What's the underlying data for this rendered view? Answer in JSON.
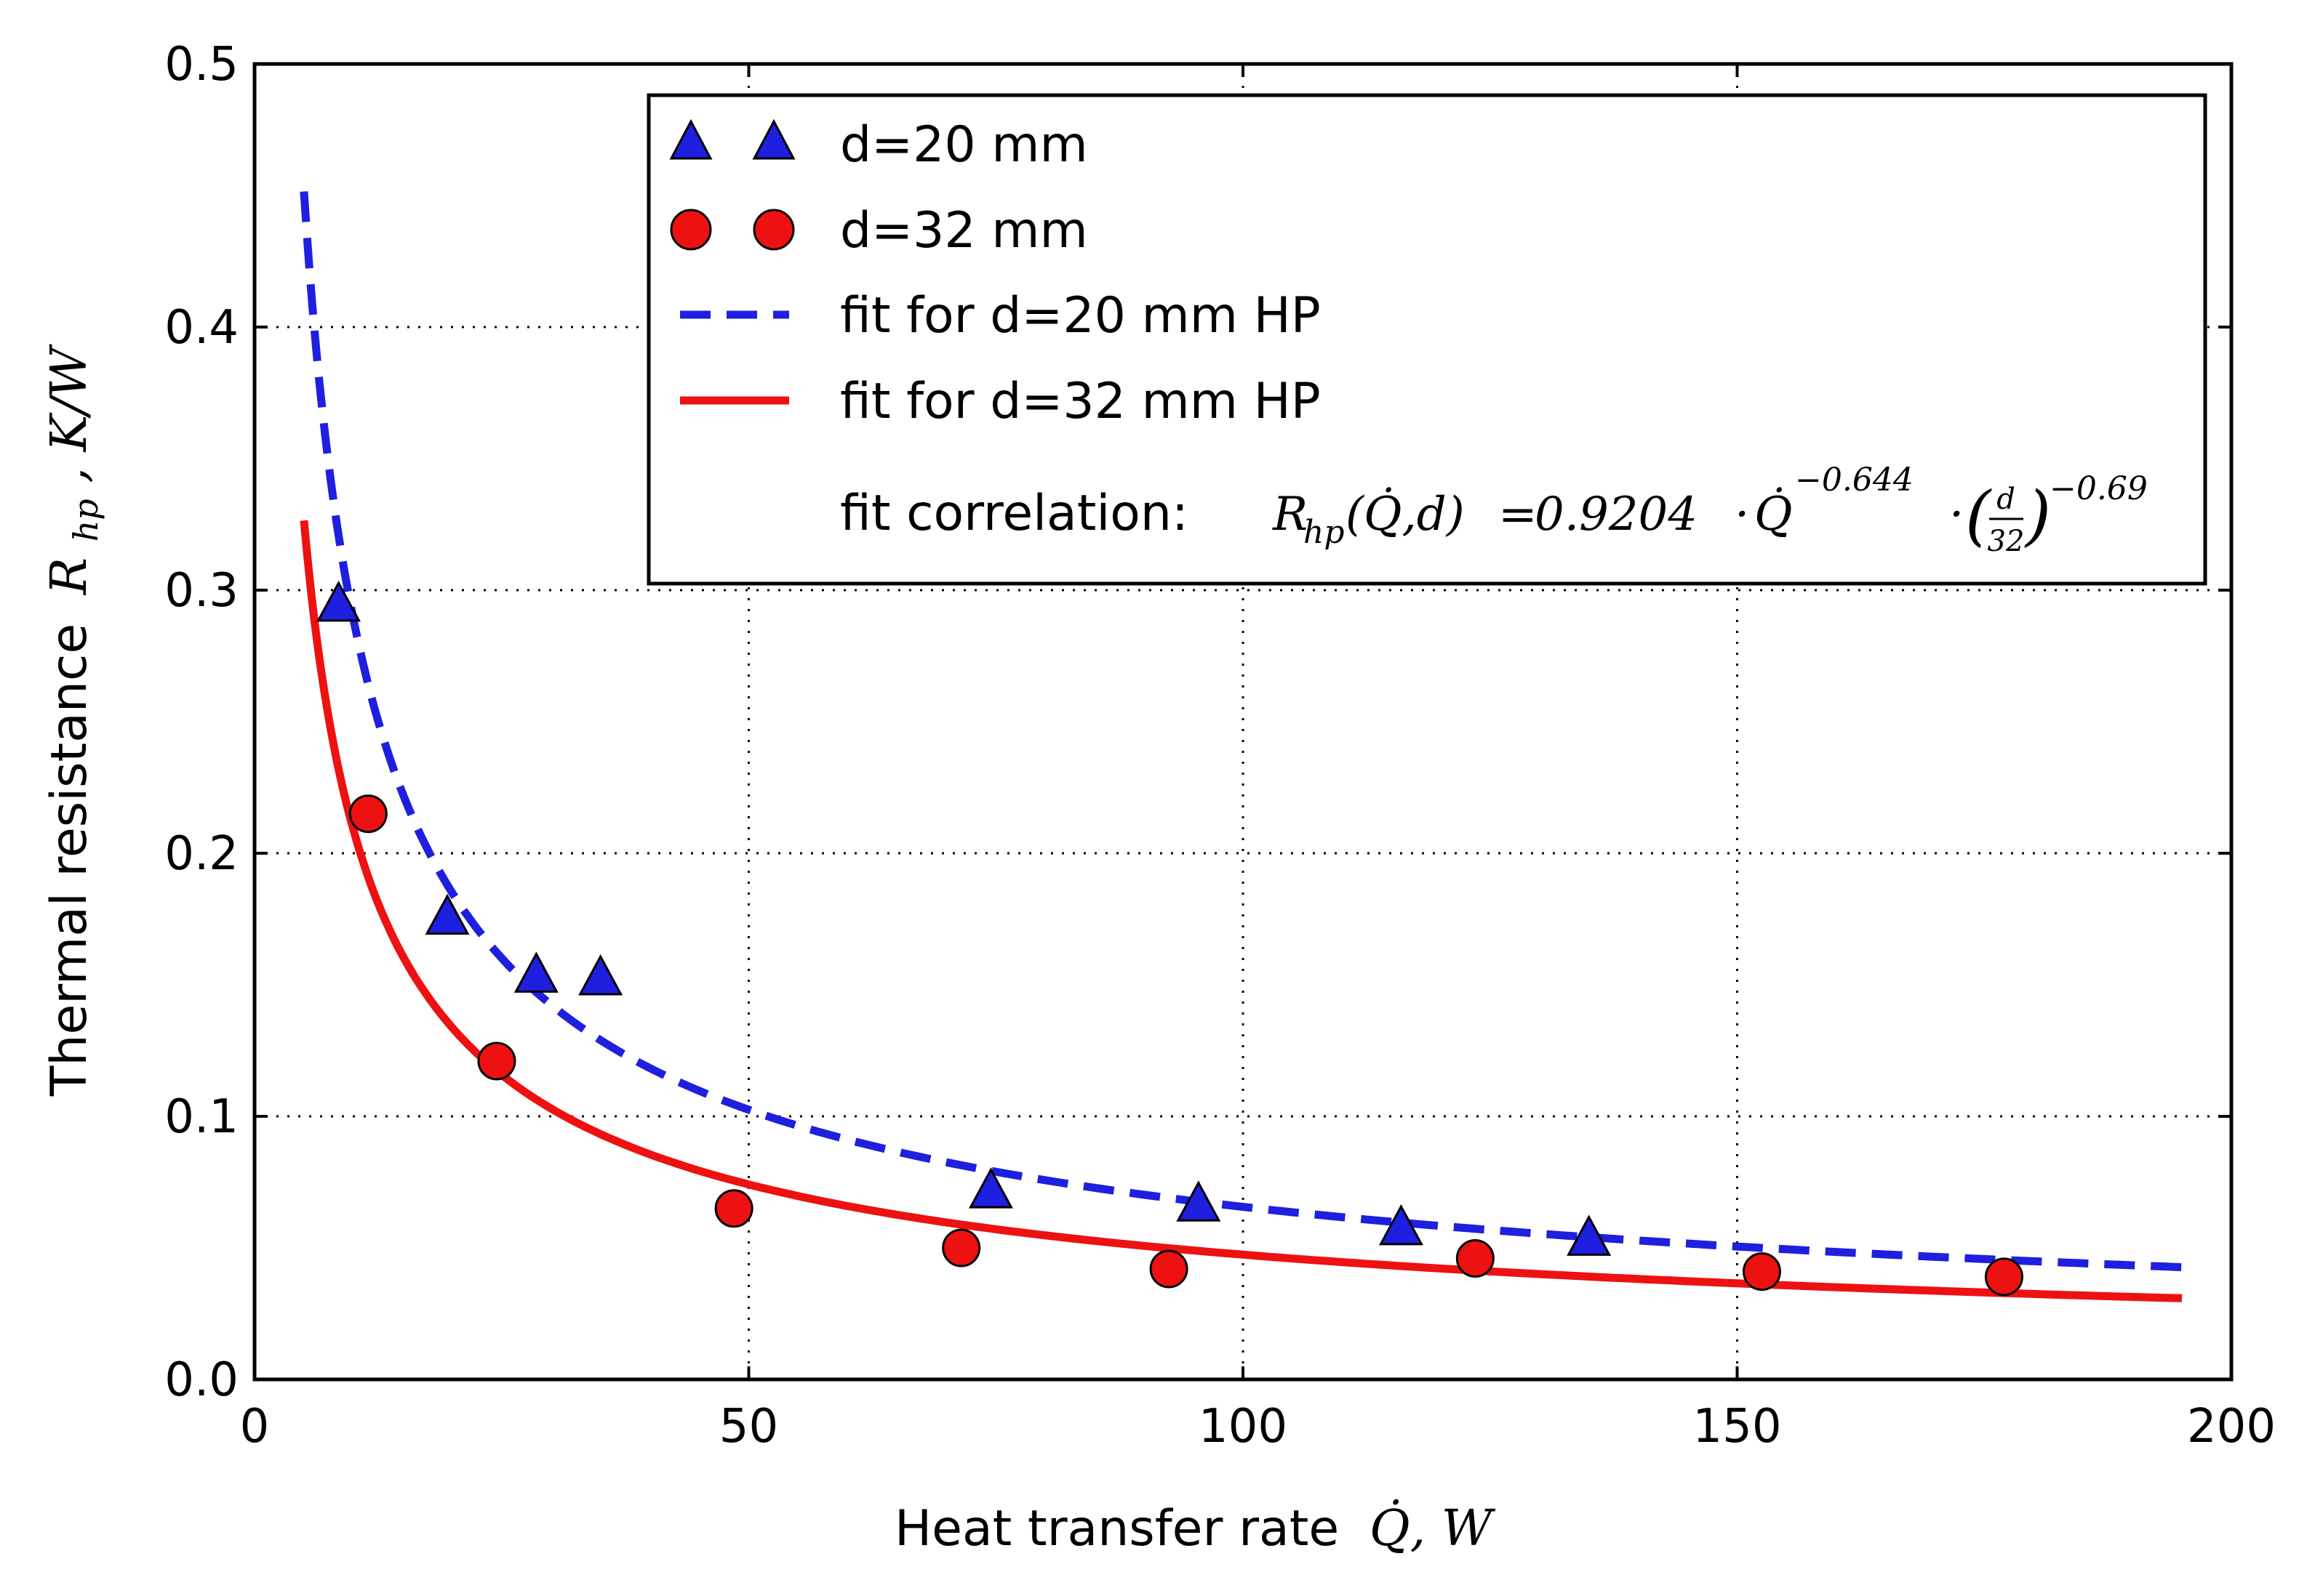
{
  "chart_data": {
    "type": "scatter",
    "title": "",
    "xlabel": "Heat transfer rate",
    "xlabel_math": "Q̇, W",
    "ylabel": "Thermal resistance",
    "ylabel_math": "R",
    "ylabel_sub": "hp",
    "ylabel_unit": ", K/W",
    "xlim": [
      0,
      200
    ],
    "ylim": [
      0.0,
      0.5
    ],
    "xticks": [
      "0",
      "50",
      "100",
      "150",
      "200"
    ],
    "xtick_values": [
      0,
      50,
      100,
      150,
      200
    ],
    "yticks": [
      "0.0",
      "0.1",
      "0.2",
      "0.3",
      "0.4",
      "0.5"
    ],
    "ytick_values": [
      0.0,
      0.1,
      0.2,
      0.3,
      0.4,
      0.5
    ],
    "grid": true,
    "legend_position": "top-right",
    "series": [
      {
        "name": "d=20 mm",
        "kind": "scatter",
        "marker": "triangle",
        "color": "#1f1fe0",
        "x": [
          8.5,
          19.5,
          28.5,
          35,
          74.5,
          95.5,
          116,
          135
        ],
        "y": [
          0.295,
          0.176,
          0.154,
          0.153,
          0.072,
          0.067,
          0.058,
          0.054
        ]
      },
      {
        "name": "d=32 mm",
        "kind": "scatter",
        "marker": "circle",
        "color": "#ee1111",
        "x": [
          11.5,
          24.5,
          48.5,
          71.5,
          92.5,
          123.5,
          152.5,
          177
        ],
        "y": [
          0.215,
          0.121,
          0.065,
          0.05,
          0.042,
          0.046,
          0.041,
          0.039
        ]
      },
      {
        "name": "fit for d=20 mm HP",
        "kind": "line",
        "style": "dashed",
        "color": "#1f1fe0",
        "coefficient": 0.9204,
        "exponent": -0.644,
        "d": 20,
        "d_exponent": -0.69,
        "x_range": [
          5,
          195
        ]
      },
      {
        "name": "fit for d=32 mm HP",
        "kind": "line",
        "style": "solid",
        "color": "#ee1111",
        "coefficient": 0.9204,
        "exponent": -0.644,
        "d": 32,
        "d_exponent": -0.69,
        "x_range": [
          5,
          195
        ]
      }
    ],
    "annotation": {
      "prefix": "fit correlation:",
      "lhs": "R",
      "lhs_sub": "hp",
      "lhs_args": "(Q̇,d)",
      "equals": "=",
      "coefficient_text": "0.9204",
      "dot": "·",
      "base": "Q̇",
      "exponent_text": "−0.644",
      "frac_num": "d",
      "frac_den": "32",
      "frac_exponent_text": "−0.69"
    }
  }
}
